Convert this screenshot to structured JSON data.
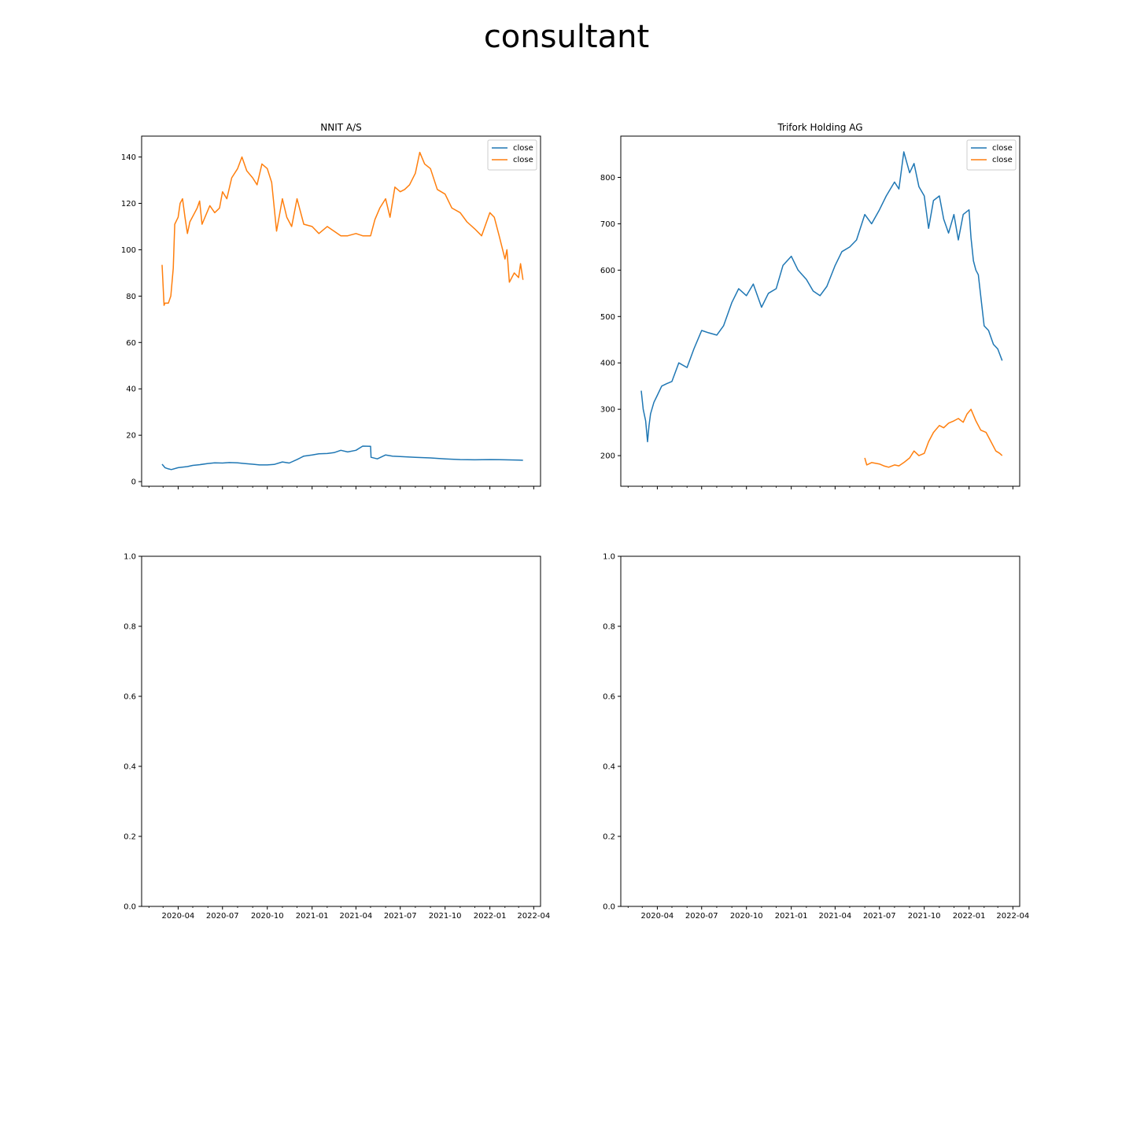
{
  "figure": {
    "suptitle": "consultant"
  },
  "colors": {
    "series1": "#1f77b4",
    "series2": "#ff7f0e"
  },
  "chart_data": [
    {
      "type": "line",
      "title": "NNIT A/S",
      "xlabel": "",
      "ylabel": "",
      "xaxis": "date",
      "xlim": [
        "2020-01-17",
        "2022-04-15"
      ],
      "ylim": [
        -2,
        149
      ],
      "yticks": [
        0,
        20,
        40,
        60,
        80,
        100,
        120,
        140
      ],
      "xticks": [
        "2020-04",
        "2020-07",
        "2020-10",
        "2021-01",
        "2021-04",
        "2021-07",
        "2021-10",
        "2022-01",
        "2022-04"
      ],
      "show_xticklabels": false,
      "legend": "upper right",
      "series": [
        {
          "name": "close",
          "color": "#1f77b4",
          "x": [
            "2020-02-28",
            "2020-03-05",
            "2020-03-12",
            "2020-03-18",
            "2020-04-01",
            "2020-04-20",
            "2020-05-01",
            "2020-05-15",
            "2020-06-01",
            "2020-06-15",
            "2020-07-01",
            "2020-07-15",
            "2020-08-01",
            "2020-08-15",
            "2020-09-01",
            "2020-09-15",
            "2020-10-01",
            "2020-10-15",
            "2020-11-01",
            "2020-11-15",
            "2020-12-01",
            "2020-12-15",
            "2021-01-01",
            "2021-01-15",
            "2021-02-01",
            "2021-02-15",
            "2021-03-01",
            "2021-03-15",
            "2021-04-01",
            "2021-04-15",
            "2021-05-01",
            "2021-05-02",
            "2021-05-15",
            "2021-06-01",
            "2021-06-15",
            "2021-07-01",
            "2021-08-01",
            "2021-09-01",
            "2021-10-01",
            "2021-11-01",
            "2021-12-01",
            "2022-01-01",
            "2022-02-01",
            "2022-03-01",
            "2022-03-10"
          ],
          "y": [
            7.5,
            6,
            5.5,
            5.2,
            6,
            6.5,
            7,
            7.3,
            7.8,
            8.1,
            8,
            8.2,
            8.1,
            7.8,
            7.5,
            7.2,
            7.2,
            7.4,
            8.5,
            8,
            9.5,
            11,
            11.5,
            12,
            12.1,
            12.5,
            13.5,
            12.8,
            13.5,
            15.3,
            15.2,
            10.5,
            9.8,
            11.5,
            11,
            10.8,
            10.5,
            10.2,
            9.8,
            9.5,
            9.4,
            9.5,
            9.4,
            9.3,
            9.2
          ]
        },
        {
          "name": "close",
          "color": "#ff7f0e",
          "x": [
            "2020-02-28",
            "2020-03-03",
            "2020-03-05",
            "2020-03-12",
            "2020-03-17",
            "2020-03-22",
            "2020-03-25",
            "2020-04-01",
            "2020-04-05",
            "2020-04-10",
            "2020-04-15",
            "2020-04-20",
            "2020-04-25",
            "2020-05-05",
            "2020-05-10",
            "2020-05-15",
            "2020-05-20",
            "2020-06-01",
            "2020-06-05",
            "2020-06-15",
            "2020-06-25",
            "2020-07-01",
            "2020-07-10",
            "2020-07-20",
            "2020-08-01",
            "2020-08-10",
            "2020-08-20",
            "2020-09-01",
            "2020-09-10",
            "2020-09-20",
            "2020-10-01",
            "2020-10-10",
            "2020-10-20",
            "2020-11-01",
            "2020-11-10",
            "2020-11-20",
            "2020-12-01",
            "2020-12-15",
            "2021-01-01",
            "2021-01-15",
            "2021-02-01",
            "2021-02-15",
            "2021-03-01",
            "2021-03-15",
            "2021-04-01",
            "2021-04-15",
            "2021-05-01",
            "2021-05-10",
            "2021-05-20",
            "2021-06-01",
            "2021-06-10",
            "2021-06-20",
            "2021-07-01",
            "2021-07-10",
            "2021-07-20",
            "2021-08-01",
            "2021-08-10",
            "2021-08-20",
            "2021-09-01",
            "2021-09-15",
            "2021-10-01",
            "2021-10-15",
            "2021-11-01",
            "2021-11-15",
            "2021-12-01",
            "2021-12-15",
            "2022-01-01",
            "2022-01-10",
            "2022-01-20",
            "2022-02-01",
            "2022-02-05",
            "2022-02-10",
            "2022-02-20",
            "2022-03-01",
            "2022-03-05",
            "2022-03-10"
          ],
          "y": [
            93.5,
            76,
            77,
            77,
            80,
            92,
            111,
            114,
            120,
            122,
            114,
            107,
            112,
            116,
            118,
            121,
            111,
            117,
            119,
            116,
            118,
            125,
            122,
            131,
            135,
            140,
            134,
            131,
            128,
            137,
            135,
            129,
            108,
            122,
            114,
            110,
            122,
            111,
            110,
            107,
            110,
            108,
            106,
            106,
            107,
            106,
            106,
            113,
            118,
            122,
            114,
            127,
            125,
            126,
            128,
            133,
            142,
            137,
            135,
            126,
            124,
            118,
            116,
            112,
            109,
            106,
            116,
            114,
            106,
            96,
            100,
            86,
            90,
            88,
            94,
            87
          ]
        }
      ]
    },
    {
      "type": "line",
      "title": "Trifork Holding AG",
      "xlabel": "",
      "ylabel": "",
      "xaxis": "date",
      "xlim": [
        "2020-01-17",
        "2022-04-15"
      ],
      "ylim": [
        134,
        889
      ],
      "yticks": [
        200,
        300,
        400,
        500,
        600,
        700,
        800
      ],
      "xticks": [
        "2020-04",
        "2020-07",
        "2020-10",
        "2021-01",
        "2021-04",
        "2021-07",
        "2021-10",
        "2022-01",
        "2022-04"
      ],
      "show_xticklabels": false,
      "legend": "upper right",
      "series": [
        {
          "name": "close",
          "color": "#1f77b4",
          "x": [
            "2020-02-28",
            "2020-03-03",
            "2020-03-08",
            "2020-03-12",
            "2020-03-15",
            "2020-03-18",
            "2020-03-25",
            "2020-04-01",
            "2020-04-10",
            "2020-04-20",
            "2020-05-01",
            "2020-05-15",
            "2020-06-01",
            "2020-06-15",
            "2020-07-01",
            "2020-07-15",
            "2020-08-01",
            "2020-08-15",
            "2020-09-01",
            "2020-09-15",
            "2020-10-01",
            "2020-10-15",
            "2020-11-01",
            "2020-11-15",
            "2020-12-01",
            "2020-12-15",
            "2021-01-01",
            "2021-01-15",
            "2021-02-01",
            "2021-02-15",
            "2021-03-01",
            "2021-03-15",
            "2021-04-01",
            "2021-04-15",
            "2021-05-01",
            "2021-05-15",
            "2021-06-01",
            "2021-06-15",
            "2021-07-01",
            "2021-07-15",
            "2021-08-01",
            "2021-08-10",
            "2021-08-20",
            "2021-09-01",
            "2021-09-10",
            "2021-09-20",
            "2021-10-01",
            "2021-10-10",
            "2021-10-20",
            "2021-11-01",
            "2021-11-10",
            "2021-11-20",
            "2021-12-01",
            "2021-12-10",
            "2021-12-20",
            "2022-01-01",
            "2022-01-05",
            "2022-01-10",
            "2022-01-15",
            "2022-01-20",
            "2022-02-01",
            "2022-02-10",
            "2022-02-20",
            "2022-03-01",
            "2022-03-10"
          ],
          "y": [
            340,
            300,
            275,
            230,
            265,
            290,
            315,
            330,
            350,
            355,
            360,
            400,
            390,
            430,
            470,
            465,
            460,
            480,
            530,
            560,
            545,
            570,
            520,
            550,
            560,
            610,
            630,
            600,
            580,
            555,
            545,
            565,
            610,
            640,
            650,
            665,
            720,
            700,
            730,
            760,
            790,
            775,
            855,
            810,
            830,
            780,
            760,
            690,
            750,
            760,
            710,
            680,
            720,
            665,
            720,
            730,
            670,
            620,
            600,
            590,
            480,
            470,
            440,
            430,
            405
          ]
        },
        {
          "name": "close",
          "color": "#ff7f0e",
          "x": [
            "2021-06-01",
            "2021-06-05",
            "2021-06-15",
            "2021-07-01",
            "2021-07-10",
            "2021-07-20",
            "2021-08-01",
            "2021-08-10",
            "2021-08-20",
            "2021-09-01",
            "2021-09-10",
            "2021-09-20",
            "2021-10-01",
            "2021-10-10",
            "2021-10-20",
            "2021-11-01",
            "2021-11-10",
            "2021-11-20",
            "2021-12-01",
            "2021-12-10",
            "2021-12-20",
            "2021-12-28",
            "2022-01-05",
            "2022-01-15",
            "2022-01-25",
            "2022-02-05",
            "2022-02-15",
            "2022-02-25",
            "2022-03-05",
            "2022-03-10"
          ],
          "y": [
            195,
            180,
            185,
            182,
            178,
            175,
            180,
            178,
            185,
            195,
            210,
            200,
            205,
            230,
            250,
            265,
            260,
            270,
            275,
            280,
            272,
            290,
            300,
            275,
            255,
            250,
            230,
            210,
            205,
            200
          ]
        }
      ]
    },
    {
      "type": "line",
      "title": "",
      "xlabel": "",
      "ylabel": "",
      "xaxis": "date",
      "xlim": [
        "2020-01-17",
        "2022-04-15"
      ],
      "ylim": [
        0,
        1
      ],
      "yticks": [
        0.0,
        0.2,
        0.4,
        0.6,
        0.8,
        1.0
      ],
      "xticks": [
        "2020-04",
        "2020-07",
        "2020-10",
        "2021-01",
        "2021-04",
        "2021-07",
        "2021-10",
        "2022-01",
        "2022-04"
      ],
      "show_xticklabels": true,
      "series": []
    },
    {
      "type": "line",
      "title": "",
      "xlabel": "",
      "ylabel": "",
      "xaxis": "date",
      "xlim": [
        "2020-01-17",
        "2022-04-15"
      ],
      "ylim": [
        0,
        1
      ],
      "yticks": [
        0.0,
        0.2,
        0.4,
        0.6,
        0.8,
        1.0
      ],
      "xticks": [
        "2020-04",
        "2020-07",
        "2020-10",
        "2021-01",
        "2021-04",
        "2021-07",
        "2021-10",
        "2022-01",
        "2022-04"
      ],
      "show_xticklabels": true,
      "series": []
    }
  ]
}
